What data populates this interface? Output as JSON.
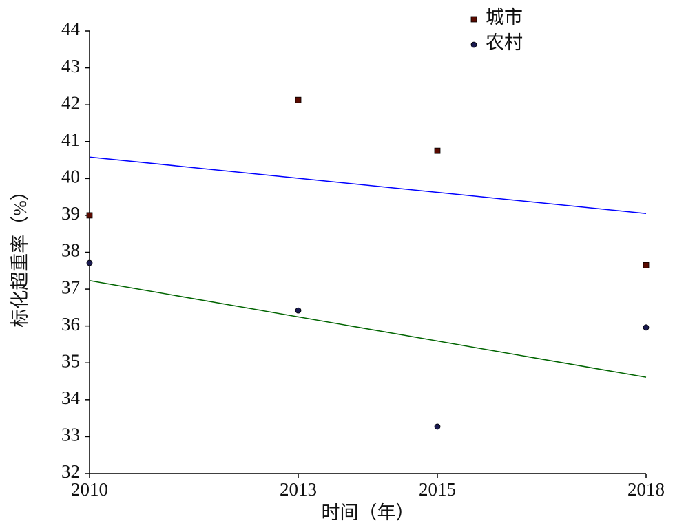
{
  "chart_data": {
    "type": "scatter",
    "x_label": "时间（年）",
    "y_label": "标化超重率（%）",
    "xlim": [
      2010,
      2018
    ],
    "xticks": [
      2010,
      2013,
      2015,
      2018
    ],
    "ylim": [
      32,
      44
    ],
    "yticks": [
      32,
      33,
      34,
      35,
      36,
      37,
      38,
      39,
      40,
      41,
      42,
      43,
      44
    ],
    "legend": "top",
    "series": [
      {
        "name": "城市",
        "color": "#5a0a00",
        "marker": "square",
        "x": [
          2010,
          2013,
          2015,
          2018
        ],
        "values": [
          39.0,
          42.13,
          40.75,
          37.65
        ],
        "trend": {
          "color": "#0000ff",
          "x": [
            2010,
            2018
          ],
          "values": [
            40.58,
            39.05
          ]
        }
      },
      {
        "name": "农村",
        "color": "#1a1a50",
        "marker": "circle",
        "x": [
          2010,
          2013,
          2015,
          2018
        ],
        "values": [
          37.71,
          36.42,
          33.27,
          35.96
        ],
        "trend": {
          "color": "#006400",
          "x": [
            2010,
            2018
          ],
          "values": [
            37.23,
            34.61
          ]
        }
      }
    ]
  }
}
